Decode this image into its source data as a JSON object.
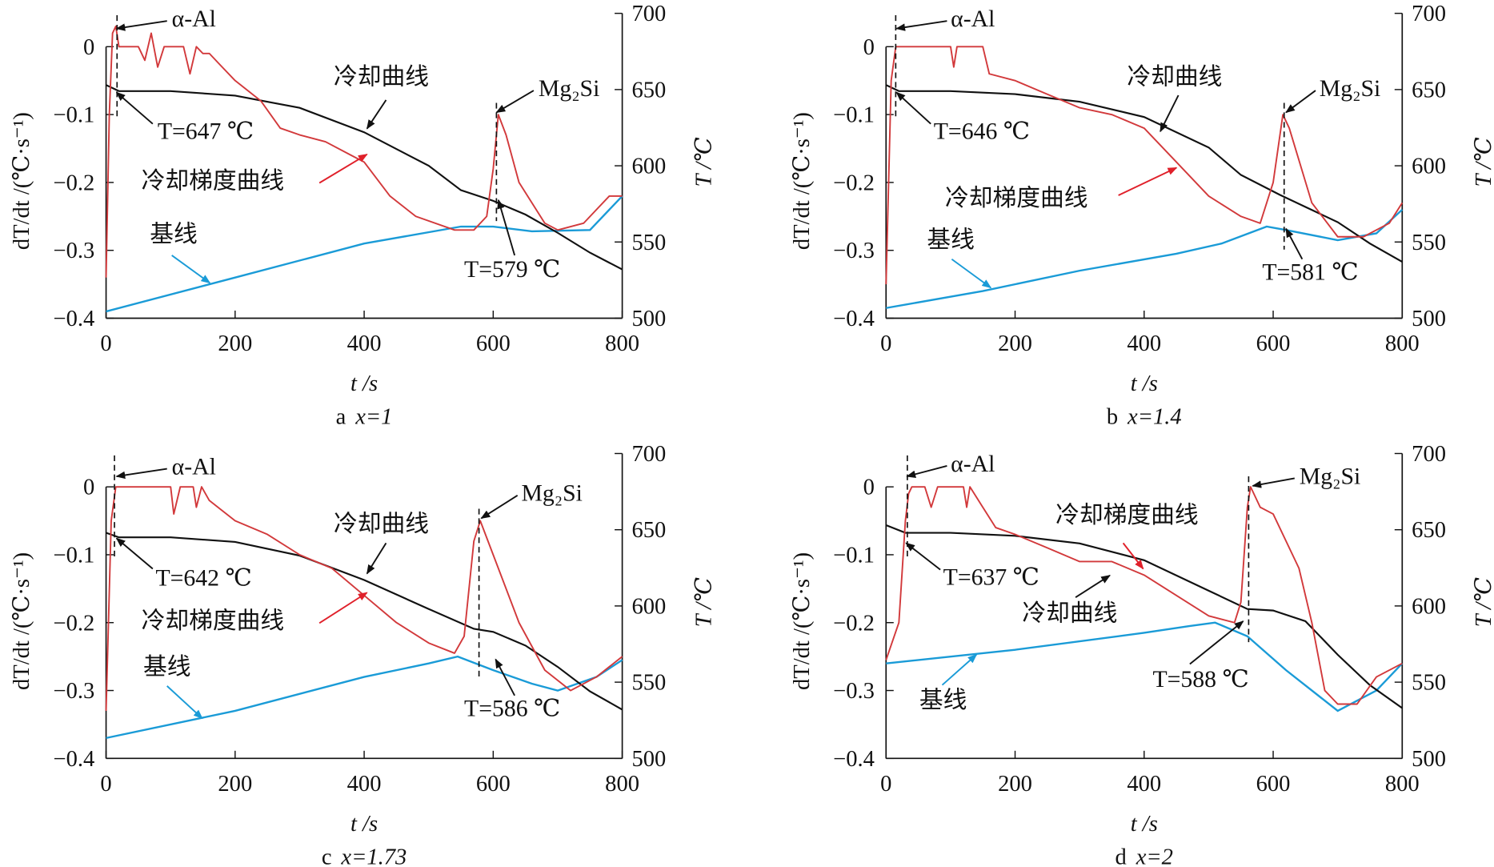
{
  "colors": {
    "gradient": "#d2393b",
    "cooling": "#111111",
    "baseline": "#1a9bd7",
    "arrow_red": "#e0202a"
  },
  "chart_data": [
    {
      "type": "line",
      "caption_letter": "a",
      "caption_var": "x=1",
      "xlabel": "t /s",
      "ylabel": "dT/dt /(℃·s⁻¹)",
      "y2label": "T /℃",
      "xlim": [
        0,
        800
      ],
      "ylim": [
        -0.4,
        0.05
      ],
      "y2lim": [
        500,
        700
      ],
      "xticks": [
        "0",
        "200",
        "400",
        "600",
        "800"
      ],
      "yticks": [
        "0",
        "-0.1",
        "-0.2",
        "-0.3",
        "-0.4"
      ],
      "y2ticks": [
        "700",
        "650",
        "600",
        "550",
        "500"
      ],
      "labels": {
        "alpha": "α-Al",
        "T1": "T=647 ℃",
        "cool": "冷却曲线",
        "mg": "Mg₂Si",
        "grad": "冷却梯度曲线",
        "base": "基线",
        "T2": "T=579 ℃"
      },
      "markers_t": [
        17,
        605
      ],
      "gradient": [
        [
          0,
          -0.34
        ],
        [
          5,
          -0.1
        ],
        [
          10,
          0.02
        ],
        [
          15,
          0.03
        ],
        [
          20,
          0
        ],
        [
          50,
          0
        ],
        [
          60,
          -0.02
        ],
        [
          70,
          0.02
        ],
        [
          80,
          -0.03
        ],
        [
          90,
          0
        ],
        [
          120,
          0
        ],
        [
          130,
          -0.04
        ],
        [
          140,
          0
        ],
        [
          150,
          -0.01
        ],
        [
          160,
          -0.01
        ],
        [
          180,
          -0.03
        ],
        [
          200,
          -0.05
        ],
        [
          240,
          -0.08
        ],
        [
          270,
          -0.12
        ],
        [
          300,
          -0.13
        ],
        [
          340,
          -0.14
        ],
        [
          380,
          -0.16
        ],
        [
          400,
          -0.17
        ],
        [
          440,
          -0.22
        ],
        [
          480,
          -0.25
        ],
        [
          540,
          -0.27
        ],
        [
          570,
          -0.27
        ],
        [
          590,
          -0.25
        ],
        [
          600,
          -0.18
        ],
        [
          608,
          -0.1
        ],
        [
          620,
          -0.13
        ],
        [
          640,
          -0.2
        ],
        [
          680,
          -0.26
        ],
        [
          700,
          -0.27
        ],
        [
          740,
          -0.26
        ],
        [
          780,
          -0.22
        ],
        [
          800,
          -0.22
        ]
      ],
      "cooling": [
        [
          0,
          653
        ],
        [
          20,
          649
        ],
        [
          100,
          649
        ],
        [
          200,
          646
        ],
        [
          300,
          638
        ],
        [
          400,
          622
        ],
        [
          500,
          600
        ],
        [
          550,
          584
        ],
        [
          600,
          577
        ],
        [
          650,
          568
        ],
        [
          700,
          556
        ],
        [
          750,
          543
        ],
        [
          800,
          532
        ]
      ],
      "baseline": [
        [
          0,
          -0.39
        ],
        [
          200,
          -0.34
        ],
        [
          400,
          -0.29
        ],
        [
          550,
          -0.265
        ],
        [
          600,
          -0.265
        ],
        [
          660,
          -0.272
        ],
        [
          750,
          -0.27
        ],
        [
          800,
          -0.22
        ]
      ]
    },
    {
      "type": "line",
      "caption_letter": "b",
      "caption_var": "x=1.4",
      "xlabel": "t /s",
      "ylabel": "dT/dt /(℃·s⁻¹)",
      "y2label": "T /℃",
      "xlim": [
        0,
        800
      ],
      "ylim": [
        -0.4,
        0.05
      ],
      "y2lim": [
        500,
        700
      ],
      "xticks": [
        "0",
        "200",
        "400",
        "600",
        "800"
      ],
      "yticks": [
        "0",
        "-0.1",
        "-0.2",
        "-0.3",
        "-0.4"
      ],
      "y2ticks": [
        "700",
        "650",
        "600",
        "550",
        "500"
      ],
      "labels": {
        "alpha": "α-Al",
        "T1": "T=646 ℃",
        "cool": "冷却曲线",
        "mg": "Mg₂Si",
        "grad": "冷却梯度曲线",
        "base": "基线",
        "T2": "T=581 ℃"
      },
      "markers_t": [
        15,
        617
      ],
      "gradient": [
        [
          0,
          -0.35
        ],
        [
          8,
          -0.05
        ],
        [
          15,
          0
        ],
        [
          100,
          0
        ],
        [
          105,
          -0.03
        ],
        [
          110,
          0
        ],
        [
          150,
          0
        ],
        [
          160,
          -0.04
        ],
        [
          200,
          -0.05
        ],
        [
          250,
          -0.07
        ],
        [
          300,
          -0.09
        ],
        [
          350,
          -0.1
        ],
        [
          400,
          -0.12
        ],
        [
          450,
          -0.17
        ],
        [
          500,
          -0.22
        ],
        [
          550,
          -0.25
        ],
        [
          580,
          -0.26
        ],
        [
          600,
          -0.2
        ],
        [
          615,
          -0.1
        ],
        [
          625,
          -0.12
        ],
        [
          660,
          -0.23
        ],
        [
          700,
          -0.28
        ],
        [
          740,
          -0.28
        ],
        [
          780,
          -0.26
        ],
        [
          800,
          -0.23
        ]
      ],
      "cooling": [
        [
          0,
          653
        ],
        [
          20,
          649
        ],
        [
          100,
          649
        ],
        [
          200,
          647
        ],
        [
          300,
          642
        ],
        [
          400,
          632
        ],
        [
          500,
          612
        ],
        [
          550,
          594
        ],
        [
          610,
          581
        ],
        [
          650,
          573
        ],
        [
          700,
          563
        ],
        [
          750,
          549
        ],
        [
          800,
          537
        ]
      ],
      "baseline": [
        [
          0,
          -0.385
        ],
        [
          150,
          -0.36
        ],
        [
          300,
          -0.33
        ],
        [
          450,
          -0.305
        ],
        [
          520,
          -0.29
        ],
        [
          590,
          -0.265
        ],
        [
          620,
          -0.27
        ],
        [
          700,
          -0.285
        ],
        [
          760,
          -0.275
        ],
        [
          800,
          -0.24
        ]
      ]
    },
    {
      "type": "line",
      "caption_letter": "c",
      "caption_var": "x=1.73",
      "xlabel": "t /s",
      "ylabel": "dT/dt /(℃·s⁻¹)",
      "y2label": "T /℃",
      "xlim": [
        0,
        800
      ],
      "ylim": [
        -0.4,
        0.05
      ],
      "y2lim": [
        500,
        700
      ],
      "xticks": [
        "0",
        "200",
        "400",
        "600",
        "800"
      ],
      "yticks": [
        "0",
        "-0.1",
        "-0.2",
        "-0.3",
        "-0.4"
      ],
      "y2ticks": [
        "700",
        "650",
        "600",
        "550",
        "500"
      ],
      "labels": {
        "alpha": "α-Al",
        "T1": "T=642 ℃",
        "cool": "冷却曲线",
        "mg": "Mg₂Si",
        "grad": "冷却梯度曲线",
        "base": "基线",
        "T2": "T=586 ℃"
      },
      "markers_t": [
        13,
        578
      ],
      "gradient": [
        [
          0,
          -0.33
        ],
        [
          8,
          -0.05
        ],
        [
          15,
          0
        ],
        [
          100,
          0
        ],
        [
          105,
          -0.04
        ],
        [
          115,
          0
        ],
        [
          135,
          0
        ],
        [
          140,
          -0.03
        ],
        [
          148,
          0
        ],
        [
          160,
          -0.02
        ],
        [
          200,
          -0.05
        ],
        [
          250,
          -0.07
        ],
        [
          300,
          -0.1
        ],
        [
          350,
          -0.12
        ],
        [
          400,
          -0.16
        ],
        [
          450,
          -0.2
        ],
        [
          500,
          -0.23
        ],
        [
          540,
          -0.245
        ],
        [
          555,
          -0.22
        ],
        [
          570,
          -0.08
        ],
        [
          580,
          -0.05
        ],
        [
          600,
          -0.1
        ],
        [
          640,
          -0.2
        ],
        [
          680,
          -0.27
        ],
        [
          720,
          -0.3
        ],
        [
          760,
          -0.28
        ],
        [
          800,
          -0.25
        ]
      ],
      "cooling": [
        [
          0,
          648
        ],
        [
          20,
          645
        ],
        [
          100,
          645
        ],
        [
          200,
          642
        ],
        [
          300,
          633
        ],
        [
          400,
          617
        ],
        [
          500,
          598
        ],
        [
          570,
          585
        ],
        [
          600,
          583
        ],
        [
          650,
          574
        ],
        [
          700,
          560
        ],
        [
          750,
          544
        ],
        [
          800,
          532
        ]
      ],
      "baseline": [
        [
          0,
          -0.37
        ],
        [
          200,
          -0.33
        ],
        [
          400,
          -0.28
        ],
        [
          500,
          -0.26
        ],
        [
          545,
          -0.25
        ],
        [
          600,
          -0.27
        ],
        [
          660,
          -0.29
        ],
        [
          700,
          -0.3
        ],
        [
          760,
          -0.28
        ],
        [
          800,
          -0.255
        ]
      ]
    },
    {
      "type": "line",
      "caption_letter": "d",
      "caption_var": "x=2",
      "xlabel": "t /s",
      "ylabel": "dT/dt /(℃·s⁻¹)",
      "y2label": "T /℃",
      "xlim": [
        0,
        800
      ],
      "ylim": [
        -0.4,
        0.05
      ],
      "y2lim": [
        500,
        700
      ],
      "xticks": [
        "0",
        "200",
        "400",
        "600",
        "800"
      ],
      "yticks": [
        "0",
        "-0.1",
        "-0.2",
        "-0.3",
        "-0.4"
      ],
      "y2ticks": [
        "700",
        "650",
        "600",
        "550",
        "500"
      ],
      "labels": {
        "alpha": "α-Al",
        "T1": "T=637 ℃",
        "cool": "冷却曲线",
        "mg": "Mg₂Si",
        "grad": "冷却梯度曲线",
        "base": "基线",
        "T2": "T=588 ℃"
      },
      "markers_t": [
        33,
        562
      ],
      "gradient": [
        [
          0,
          -0.255
        ],
        [
          20,
          -0.2
        ],
        [
          30,
          -0.05
        ],
        [
          35,
          -0.01
        ],
        [
          40,
          0
        ],
        [
          60,
          0
        ],
        [
          70,
          -0.03
        ],
        [
          80,
          0
        ],
        [
          120,
          0
        ],
        [
          125,
          -0.03
        ],
        [
          130,
          0
        ],
        [
          150,
          -0.03
        ],
        [
          170,
          -0.06
        ],
        [
          200,
          -0.07
        ],
        [
          250,
          -0.09
        ],
        [
          300,
          -0.11
        ],
        [
          350,
          -0.11
        ],
        [
          400,
          -0.13
        ],
        [
          450,
          -0.16
        ],
        [
          500,
          -0.19
        ],
        [
          540,
          -0.2
        ],
        [
          550,
          -0.17
        ],
        [
          560,
          -0.03
        ],
        [
          565,
          0
        ],
        [
          580,
          -0.03
        ],
        [
          600,
          -0.04
        ],
        [
          640,
          -0.12
        ],
        [
          660,
          -0.2
        ],
        [
          680,
          -0.3
        ],
        [
          700,
          -0.32
        ],
        [
          730,
          -0.32
        ],
        [
          760,
          -0.28
        ],
        [
          800,
          -0.26
        ]
      ],
      "cooling": [
        [
          0,
          653
        ],
        [
          30,
          648
        ],
        [
          100,
          648
        ],
        [
          200,
          646
        ],
        [
          300,
          641
        ],
        [
          400,
          630
        ],
        [
          500,
          610
        ],
        [
          560,
          598
        ],
        [
          600,
          597
        ],
        [
          650,
          590
        ],
        [
          700,
          568
        ],
        [
          750,
          548
        ],
        [
          800,
          533
        ]
      ],
      "baseline": [
        [
          0,
          -0.26
        ],
        [
          200,
          -0.24
        ],
        [
          400,
          -0.215
        ],
        [
          470,
          -0.205
        ],
        [
          510,
          -0.2
        ],
        [
          560,
          -0.22
        ],
        [
          620,
          -0.27
        ],
        [
          700,
          -0.33
        ],
        [
          760,
          -0.3
        ],
        [
          800,
          -0.26
        ]
      ]
    }
  ]
}
